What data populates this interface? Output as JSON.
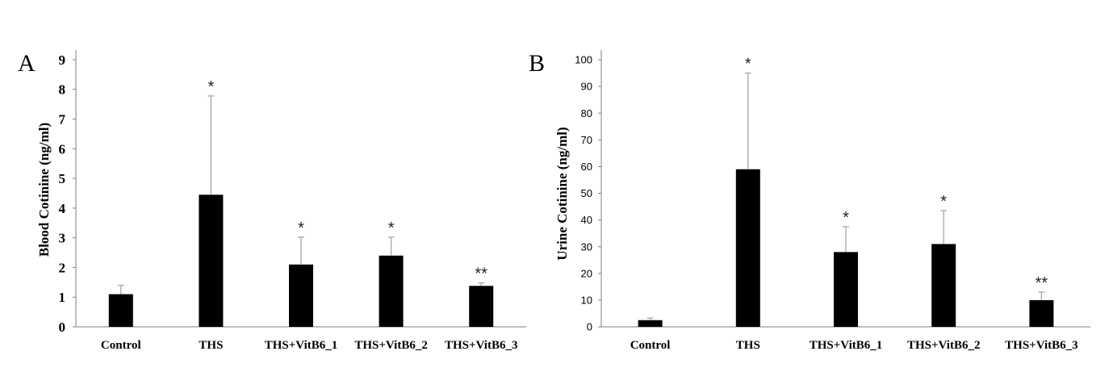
{
  "chart_data": [
    {
      "type": "bar",
      "panel_label": "A",
      "categories": [
        "Control",
        "THS",
        "THS+VitB6_1",
        "THS+VitB6_2",
        "THS+VitB6_3"
      ],
      "values": [
        1.1,
        4.45,
        2.1,
        2.4,
        1.38
      ],
      "error_upper": [
        1.4,
        7.78,
        3.02,
        3.02,
        1.48
      ],
      "annotations": [
        "",
        "*",
        "*",
        "*",
        "**"
      ],
      "ylabel": "Blood Cotinine (ng/ml)",
      "xlabel": "",
      "ylim": [
        0,
        9
      ],
      "yticks": [
        0,
        1,
        2,
        3,
        4,
        5,
        6,
        7,
        8,
        9
      ],
      "bar_color": "#000000",
      "error_color": "#a6a6a6",
      "grid": false
    },
    {
      "type": "bar",
      "panel_label": "B",
      "categories": [
        "Control",
        "THS",
        "THS+VitB6_1",
        "THS+VitB6_2",
        "THS+VitB6_3"
      ],
      "values": [
        2.5,
        59,
        28,
        31,
        10
      ],
      "error_upper": [
        3.3,
        95,
        37.5,
        43.5,
        13
      ],
      "annotations": [
        "",
        "*",
        "*",
        "*",
        "**"
      ],
      "ylabel": "Urine Cotinine (ng/ml)",
      "xlabel": "",
      "ylim": [
        0,
        100
      ],
      "yticks": [
        0,
        10,
        20,
        30,
        40,
        50,
        60,
        70,
        80,
        90,
        100
      ],
      "bar_color": "#000000",
      "error_color": "#a6a6a6",
      "grid": false
    }
  ]
}
